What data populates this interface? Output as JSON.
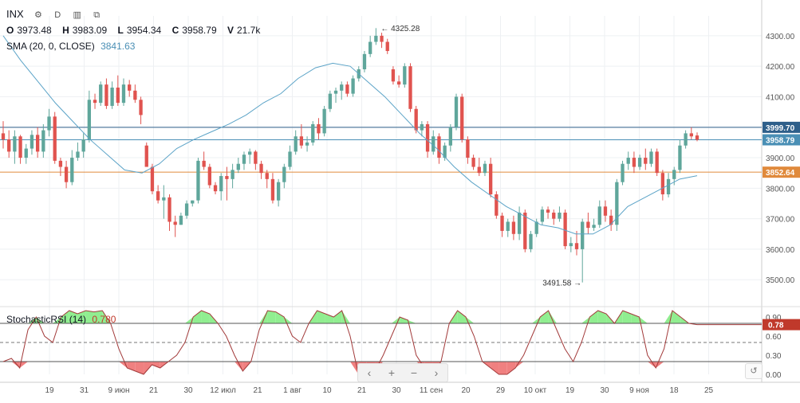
{
  "header": {
    "symbol": "INX",
    "interval": "D",
    "ohlc": {
      "o_label": "O",
      "o": "3973.48",
      "h_label": "H",
      "h": "3983.09",
      "l_label": "L",
      "l": "3954.34",
      "c_label": "C",
      "c": "3958.79",
      "v_label": "V",
      "v": "21.7k"
    },
    "sma_label": "SMA (20, 0, CLOSE)",
    "sma_value": "3841.63"
  },
  "oscillator": {
    "label": "StochasticRSI (14)",
    "value": "0.780",
    "badge": "0.78",
    "axis_ticks": [
      "0.90",
      "0.60",
      "0.30",
      "0.00"
    ]
  },
  "price_axis_ticks": [
    "4300.00",
    "4200.00",
    "4100.00",
    "4000.00",
    "3900.00",
    "3800.00",
    "3700.00",
    "3600.00",
    "3500.00"
  ],
  "price_badges": [
    {
      "text": "3999.70",
      "color": "#2e5f8a"
    },
    {
      "text": "3958.79",
      "color": "#4a8fb5"
    },
    {
      "text": "3852.64",
      "color": "#e08a3c"
    }
  ],
  "annotations": {
    "high": "4325.28",
    "low": "3491.58"
  },
  "x_ticks": [
    "19",
    "31",
    "9 июн",
    "21",
    "30",
    "12 июл",
    "21",
    "1 авг",
    "10",
    "21",
    "30",
    "11 сен",
    "20",
    "29",
    "10 окт",
    "19",
    "30",
    "9 ноя",
    "18",
    "25"
  ],
  "toolbar": {
    "left": "‹",
    "plus": "+",
    "minus": "−",
    "right": "›"
  },
  "colors": {
    "up": "#5fa69b",
    "down": "#e0534f",
    "sma": "#5ba3c7",
    "osc_line": "#a23a3a",
    "osc_fill_high": "#90ee90",
    "osc_fill_low": "#f08080"
  },
  "chart_data": {
    "type": "candlestick",
    "y_range": [
      3430,
      4365
    ],
    "candles": [
      [
        3980,
        4020,
        3930,
        3960
      ],
      [
        3960,
        3990,
        3900,
        3920
      ],
      [
        3920,
        3990,
        3880,
        3970
      ],
      [
        3970,
        3975,
        3880,
        3900
      ],
      [
        3900,
        3945,
        3880,
        3930
      ],
      [
        3930,
        3990,
        3910,
        3975
      ],
      [
        3975,
        4000,
        3900,
        3920
      ],
      [
        3920,
        4010,
        3900,
        3990
      ],
      [
        3990,
        4060,
        3970,
        4035
      ],
      [
        4035,
        4050,
        3880,
        3890
      ],
      [
        3890,
        3900,
        3840,
        3870
      ],
      [
        3870,
        3890,
        3800,
        3820
      ],
      [
        3820,
        3925,
        3810,
        3900
      ],
      [
        3900,
        3950,
        3890,
        3920
      ],
      [
        3920,
        3980,
        3900,
        3960
      ],
      [
        3960,
        4120,
        3950,
        4090
      ],
      [
        4090,
        4110,
        4060,
        4080
      ],
      [
        4080,
        4150,
        4070,
        4140
      ],
      [
        4140,
        4160,
        4060,
        4070
      ],
      [
        4070,
        4150,
        4060,
        4130
      ],
      [
        4130,
        4170,
        4070,
        4080
      ],
      [
        4080,
        4160,
        4070,
        4140
      ],
      [
        4140,
        4155,
        4100,
        4120
      ],
      [
        4120,
        4140,
        4080,
        4090
      ],
      [
        4090,
        4100,
        4010,
        4040
      ],
      [
        3940,
        3950,
        3870,
        3870
      ],
      [
        3870,
        3880,
        3780,
        3790
      ],
      [
        3790,
        3810,
        3750,
        3760
      ],
      [
        3760,
        3810,
        3700,
        3770
      ],
      [
        3770,
        3780,
        3660,
        3690
      ],
      [
        3690,
        3710,
        3640,
        3680
      ],
      [
        3680,
        3720,
        3680,
        3710
      ],
      [
        3710,
        3760,
        3700,
        3750
      ],
      [
        3750,
        3760,
        3740,
        3760
      ],
      [
        3760,
        3900,
        3750,
        3890
      ],
      [
        3890,
        3920,
        3860,
        3870
      ],
      [
        3870,
        3880,
        3800,
        3810
      ],
      [
        3810,
        3820,
        3780,
        3790
      ],
      [
        3790,
        3850,
        3760,
        3840
      ],
      [
        3840,
        3870,
        3760,
        3830
      ],
      [
        3830,
        3880,
        3800,
        3860
      ],
      [
        3860,
        3900,
        3850,
        3880
      ],
      [
        3880,
        3920,
        3860,
        3910
      ],
      [
        3910,
        3930,
        3880,
        3920
      ],
      [
        3920,
        3925,
        3860,
        3880
      ],
      [
        3880,
        3890,
        3830,
        3850
      ],
      [
        3850,
        3860,
        3800,
        3830
      ],
      [
        3830,
        3850,
        3750,
        3760
      ],
      [
        3760,
        3830,
        3740,
        3820
      ],
      [
        3820,
        3880,
        3800,
        3870
      ],
      [
        3870,
        3940,
        3860,
        3920
      ],
      [
        3920,
        3990,
        3910,
        3970
      ],
      [
        3970,
        4010,
        3930,
        3940
      ],
      [
        3940,
        3970,
        3920,
        3950
      ],
      [
        3950,
        4020,
        3940,
        4010
      ],
      [
        4010,
        4030,
        3960,
        3980
      ],
      [
        3980,
        4070,
        3970,
        4060
      ],
      [
        4060,
        4120,
        4050,
        4110
      ],
      [
        4110,
        4130,
        4080,
        4120
      ],
      [
        4120,
        4150,
        4090,
        4140
      ],
      [
        4140,
        4150,
        4100,
        4110
      ],
      [
        4110,
        4170,
        4100,
        4160
      ],
      [
        4160,
        4200,
        4150,
        4190
      ],
      [
        4190,
        4250,
        4180,
        4240
      ],
      [
        4240,
        4300,
        4230,
        4280
      ],
      [
        4280,
        4325,
        4270,
        4300
      ],
      [
        4300,
        4310,
        4260,
        4280
      ],
      [
        4280,
        4290,
        4240,
        4250
      ],
      [
        4190,
        4200,
        4140,
        4150
      ],
      [
        4150,
        4170,
        4130,
        4140
      ],
      [
        4140,
        4210,
        4130,
        4200
      ],
      [
        4200,
        4210,
        4050,
        4060
      ],
      [
        4060,
        4070,
        3980,
        3990
      ],
      [
        3990,
        4020,
        3970,
        4010
      ],
      [
        4010,
        4020,
        3900,
        3920
      ],
      [
        3920,
        3990,
        3910,
        3970
      ],
      [
        3970,
        3980,
        3880,
        3900
      ],
      [
        3900,
        3950,
        3890,
        3940
      ],
      [
        3940,
        4010,
        3920,
        4000
      ],
      [
        4000,
        4110,
        3990,
        4100
      ],
      [
        4100,
        4110,
        3950,
        3960
      ],
      [
        3960,
        3970,
        3880,
        3900
      ],
      [
        3900,
        3910,
        3860,
        3870
      ],
      [
        3870,
        3900,
        3840,
        3850
      ],
      [
        3850,
        3890,
        3840,
        3880
      ],
      [
        3880,
        3900,
        3770,
        3780
      ],
      [
        3780,
        3790,
        3700,
        3710
      ],
      [
        3710,
        3720,
        3640,
        3660
      ],
      [
        3660,
        3700,
        3640,
        3690
      ],
      [
        3690,
        3710,
        3630,
        3650
      ],
      [
        3650,
        3740,
        3630,
        3720
      ],
      [
        3720,
        3730,
        3590,
        3600
      ],
      [
        3600,
        3660,
        3590,
        3650
      ],
      [
        3650,
        3700,
        3640,
        3690
      ],
      [
        3690,
        3740,
        3680,
        3730
      ],
      [
        3730,
        3740,
        3700,
        3720
      ],
      [
        3720,
        3730,
        3680,
        3700
      ],
      [
        3700,
        3740,
        3690,
        3720
      ],
      [
        3720,
        3730,
        3600,
        3610
      ],
      [
        3610,
        3640,
        3590,
        3620
      ],
      [
        3620,
        3660,
        3580,
        3600
      ],
      [
        3600,
        3700,
        3491,
        3690
      ],
      [
        3690,
        3720,
        3650,
        3670
      ],
      [
        3670,
        3700,
        3660,
        3680
      ],
      [
        3680,
        3760,
        3670,
        3740
      ],
      [
        3740,
        3760,
        3690,
        3710
      ],
      [
        3710,
        3730,
        3660,
        3680
      ],
      [
        3680,
        3830,
        3660,
        3820
      ],
      [
        3820,
        3890,
        3810,
        3880
      ],
      [
        3880,
        3920,
        3860,
        3900
      ],
      [
        3900,
        3920,
        3850,
        3870
      ],
      [
        3870,
        3910,
        3860,
        3900
      ],
      [
        3900,
        3930,
        3860,
        3880
      ],
      [
        3880,
        3930,
        3870,
        3920
      ],
      [
        3920,
        3930,
        3840,
        3850
      ],
      [
        3850,
        3860,
        3760,
        3780
      ],
      [
        3780,
        3850,
        3770,
        3830
      ],
      [
        3830,
        3870,
        3810,
        3860
      ],
      [
        3860,
        3960,
        3850,
        3940
      ],
      [
        3940,
        3990,
        3930,
        3980
      ],
      [
        3980,
        4000,
        3960,
        3970
      ],
      [
        3973,
        3983,
        3954,
        3959
      ]
    ],
    "sma": [
      4300,
      4220,
      4150,
      4080,
      4020,
      3960,
      3910,
      3860,
      3850,
      3880,
      3930,
      3960,
      3985,
      4010,
      4040,
      4080,
      4110,
      4160,
      4195,
      4210,
      4200,
      4150,
      4100,
      4040,
      3980,
      3930,
      3870,
      3820,
      3780,
      3740,
      3710,
      3680,
      3670,
      3650,
      3650,
      3680,
      3740,
      3770,
      3800,
      3830,
      3841
    ],
    "osc_k": [
      0.2,
      0.25,
      0.1,
      0.7,
      0.9,
      0.6,
      0.5,
      0.9,
      1.0,
      0.95,
      1.0,
      0.98,
      1.0,
      0.8,
      0.4,
      0.1,
      0.05,
      0.0,
      0.15,
      0.1,
      0.2,
      0.3,
      0.5,
      0.9,
      1.0,
      0.95,
      0.8,
      0.6,
      0.3,
      0.05,
      0.2,
      0.7,
      1.0,
      0.98,
      0.9,
      0.6,
      0.5,
      0.8,
      1.0,
      0.95,
      0.9,
      1.0,
      0.6,
      0.0,
      0.0,
      0.05,
      0.3,
      0.6,
      0.9,
      0.85,
      0.3,
      0.1,
      0.0,
      0.2,
      0.8,
      1.0,
      0.9,
      0.6,
      0.2,
      0.1,
      0.0,
      0.0,
      0.1,
      0.3,
      0.6,
      0.9,
      1.0,
      0.7,
      0.4,
      0.2,
      0.5,
      0.9,
      1.0,
      0.95,
      0.8,
      1.0,
      0.95,
      0.9,
      0.3,
      0.1,
      0.4,
      1.0,
      0.9,
      0.8,
      0.78
    ]
  }
}
